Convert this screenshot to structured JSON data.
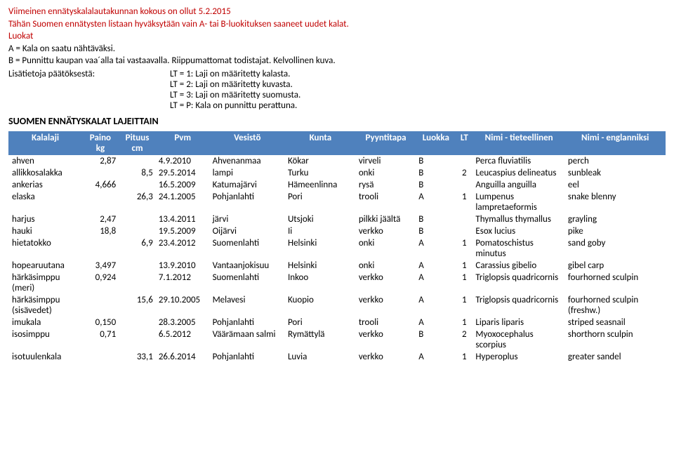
{
  "header": {
    "line1": "Viimeinen ennätyskalalautakunnan kokous on ollut 5.2.2015",
    "line2": "Tähän Suomen ennätysten listaan hyväksytään vain A- tai B-luokituksen saaneet uudet kalat.",
    "line3": "Luokat",
    "line4": "A = Kala on saatu nähtäväksi.",
    "line5": "B = Punnittu kaupan vaa´alla tai vastaavalla. Riippumattomat todistajat. Kelvollinen kuva.",
    "info_left": "Lisätietoja päätöksestä:",
    "info_r1": "LT = 1: Laji on määritetty kalasta.",
    "info_r2": "LT = 2: Laji on määritetty kuvasta.",
    "info_r3": "LT = 3: Laji on määritetty suomusta.",
    "info_r4": "LT = P: Kala on punnittu perattuna.",
    "main_title": "SUOMEN ENNÄTYSKALAT LAJEITTAIN"
  },
  "table": {
    "columns": [
      "Kalalaji",
      "Paino kg",
      "Pituus cm",
      "Pvm",
      "Vesistö",
      "Kunta",
      "Pyyntitapa",
      "Luokka",
      "LT",
      "Nimi - tieteellinen",
      "Nimi - englanniksi"
    ],
    "col_widths": [
      "95px",
      "48px",
      "48px",
      "70px",
      "98px",
      "92px",
      "78px",
      "52px",
      "22px",
      "120px",
      "130px"
    ],
    "col_align": [
      "left",
      "right",
      "right",
      "left",
      "left",
      "left",
      "left",
      "left",
      "center",
      "left",
      "left"
    ],
    "header_bg": "#4f81bd",
    "header_fg": "#ffffff",
    "rows": [
      [
        "ahven",
        "2,87",
        "",
        "4.9.2010",
        "Ahvenanmaa",
        "Kökar",
        "virveli",
        "B",
        "",
        "Perca fluviatilis",
        "perch"
      ],
      [
        "allikkosalakka",
        "",
        "8,5",
        "29.5.2014",
        "lampi",
        "Turku",
        "onki",
        "B",
        "2",
        "Leucaspius delineatus",
        "sunbleak"
      ],
      [
        "ankerias",
        "4,666",
        "",
        "16.5.2009",
        "Katumajärvi",
        "Hämeenlinna",
        "rysä",
        "B",
        "",
        "Anguilla anguilla",
        "eel"
      ],
      [
        "elaska",
        "",
        "26,3",
        "24.1.2005",
        "Pohjanlahti",
        "Pori",
        "trooli",
        "A",
        "1",
        "Lumpenus lampretaeformis",
        "snake blenny"
      ],
      [
        "harjus",
        "2,47",
        "",
        "13.4.2011",
        "järvi",
        "Utsjoki",
        "pilkki jäältä",
        "B",
        "",
        "Thymallus thymallus",
        "grayling"
      ],
      [
        "hauki",
        "18,8",
        "",
        "19.5.2009",
        "Oijärvi",
        "Ii",
        "verkko",
        "B",
        "",
        "Esox lucius",
        "pike"
      ],
      [
        "hietatokko",
        "",
        "6,9",
        "23.4.2012",
        "Suomenlahti",
        "Helsinki",
        "onki",
        "A",
        "1",
        "Pomatoschistus minutus",
        "sand goby"
      ],
      [
        "hopearuutana",
        "3,497",
        "",
        "13.9.2010",
        "Vantaanjokisuu",
        "Helsinki",
        "onki",
        "A",
        "1",
        "Carassius gibelio",
        "gibel carp"
      ],
      [
        "härkäsimppu (meri)",
        "0,924",
        "",
        "7.1.2012",
        "Suomenlahti",
        "Inkoo",
        "verkko",
        "A",
        "1",
        "Triglopsis quadricornis",
        "fourhorned sculpin"
      ],
      [
        "härkäsimppu (sisävedet)",
        "",
        "15,6",
        "29.10.2005",
        "Melavesi",
        "Kuopio",
        "verkko",
        "A",
        "1",
        "Triglopsis quadricornis",
        "fourhorned sculpin (freshw.)"
      ],
      [
        "imukala",
        "0,150",
        "",
        "28.3.2005",
        "Pohjanlahti",
        "Pori",
        "trooli",
        "A",
        "1",
        "Liparis liparis",
        "striped seasnail"
      ],
      [
        "isosimppu",
        "0,71",
        "",
        "6.5.2012",
        "Väärämaan salmi",
        "Rymättylä",
        "verkko",
        "B",
        "2",
        "Myoxocephalus scorpius",
        "shorthorn sculpin"
      ],
      [
        "isotuulenkala",
        "",
        "33,1",
        "26.6.2014",
        "Pohjanlahti",
        "Luvia",
        "verkko",
        "A",
        "1",
        "Hyperoplus",
        "greater sandel"
      ]
    ]
  }
}
